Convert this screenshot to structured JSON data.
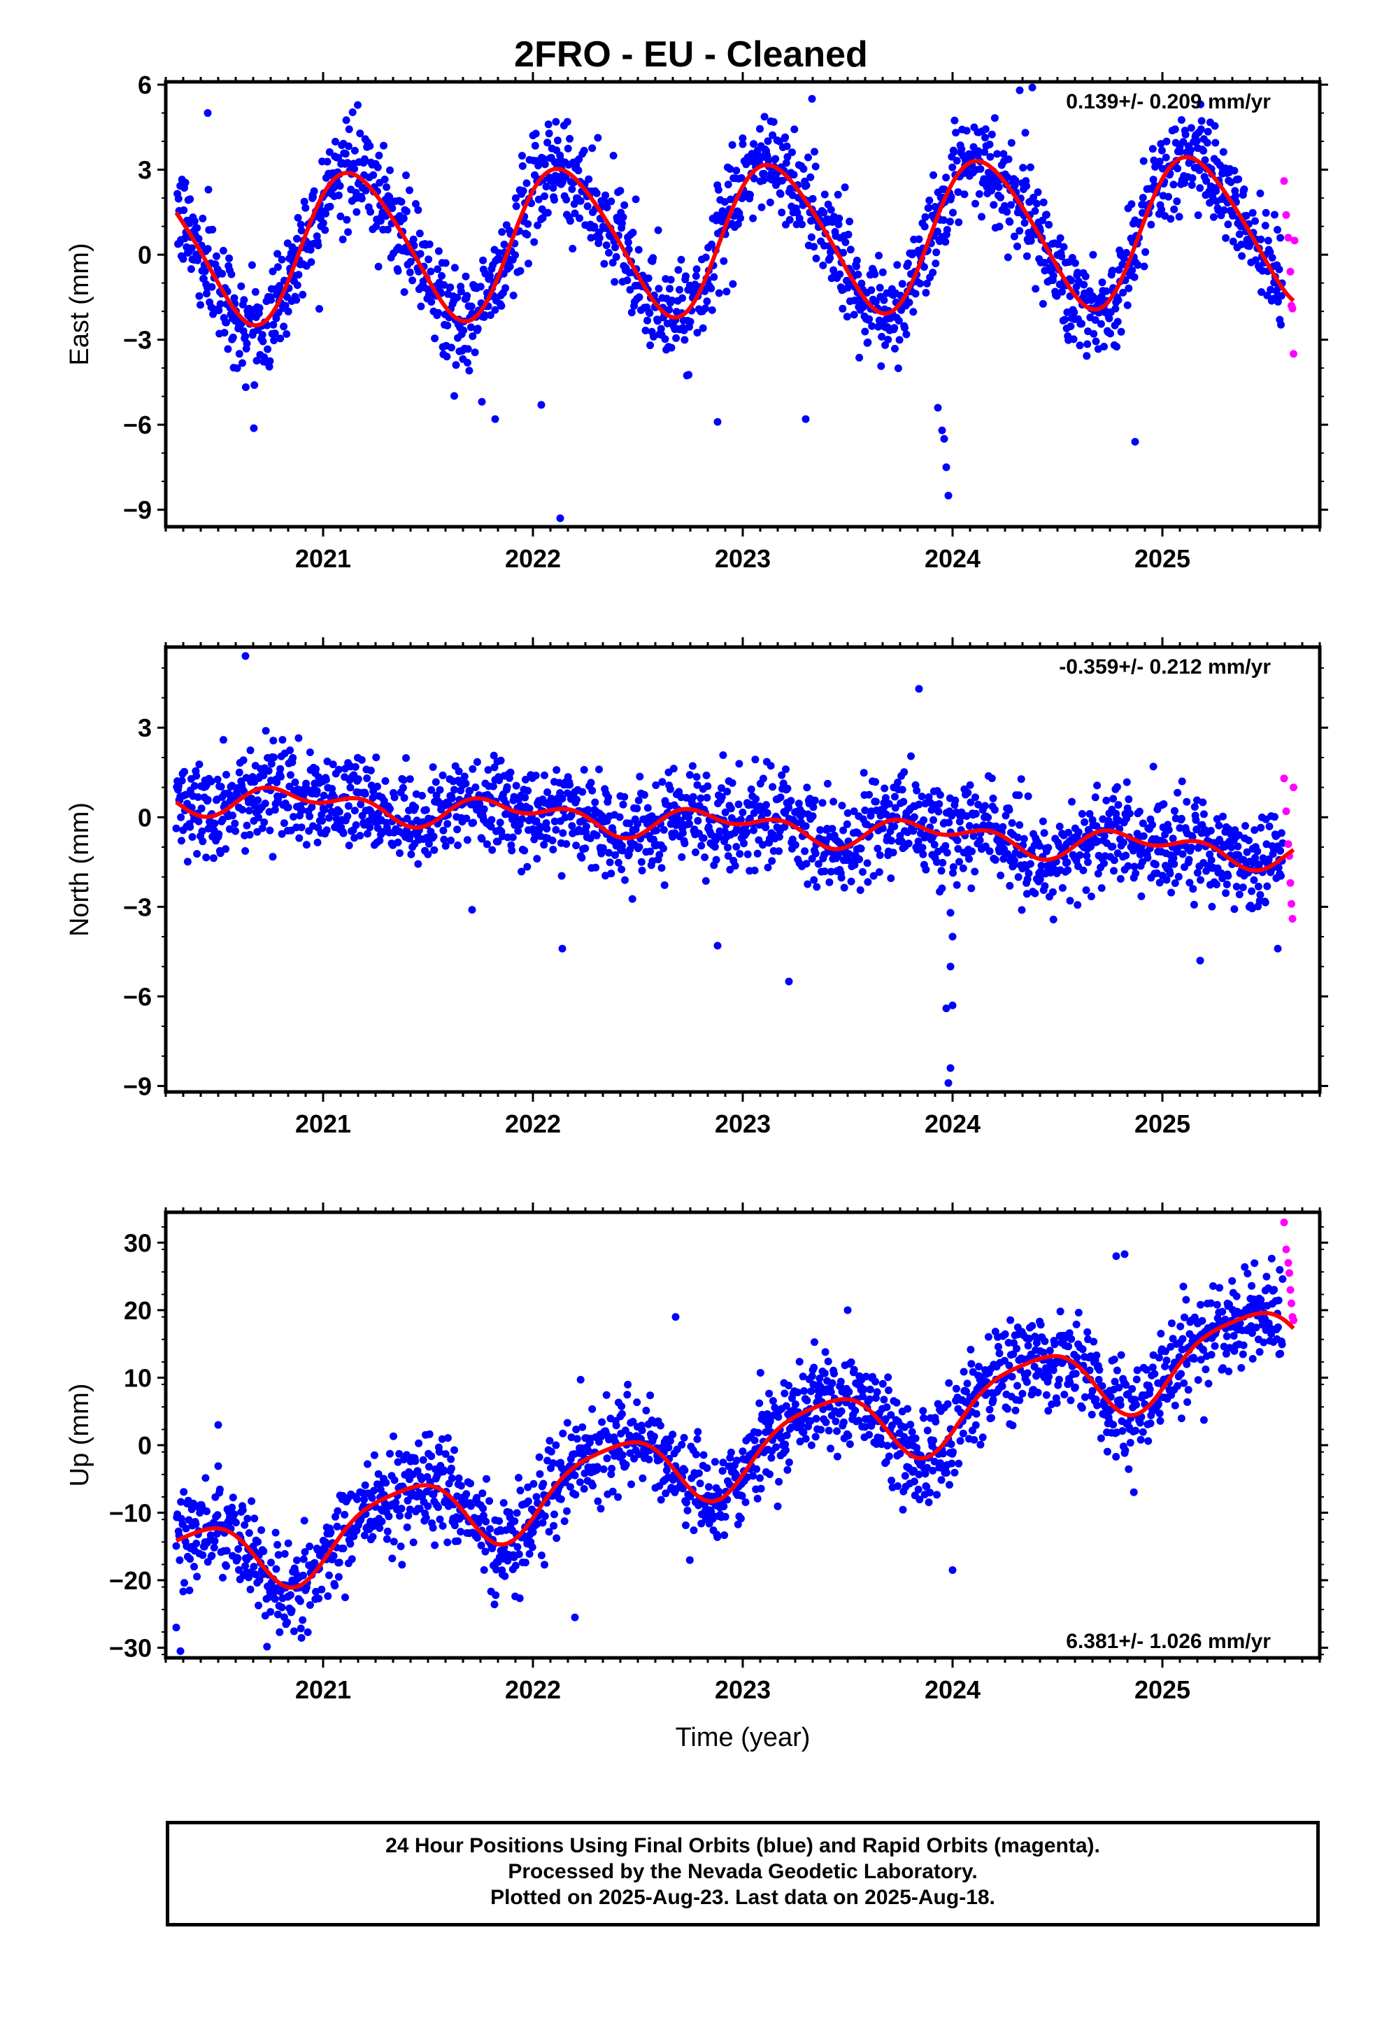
{
  "title": "2FRO  - EU - Cleaned",
  "footer": {
    "line1": "24 Hour Positions Using Final Orbits (blue) and Rapid Orbits (magenta).",
    "line2": "Processed by the Nevada Geodetic Laboratory.",
    "line3": "Plotted on 2025-Aug-23. Last data on 2025-Aug-18."
  },
  "colors": {
    "final": "#0000ff",
    "rapid": "#ff00ff",
    "model": "#ff0000",
    "frame": "#000000"
  },
  "chart_data": [
    {
      "type": "scatter",
      "name": "east",
      "ylabel": "East (mm)",
      "xlabel": "",
      "rate_label": "0.139+/- 0.209 mm/yr",
      "rate_position": "top-right",
      "xlim": [
        2020.25,
        2025.75
      ],
      "ylim": [
        -9.6,
        6.1
      ],
      "yticks": [
        -9,
        -6,
        -3,
        0,
        3,
        6
      ],
      "ytick_labels": [
        "−9",
        "−6",
        "−3",
        "0",
        "3",
        "6"
      ],
      "xticks": [
        2021,
        2022,
        2023,
        2024,
        2025
      ],
      "xtick_labels": [
        "2021",
        "2022",
        "2023",
        "2024",
        "2025"
      ],
      "model": {
        "offset": 0.2,
        "trend": 0.139,
        "amp1": 2.6,
        "phase1": 0.15,
        "amp2": 0.3,
        "phase2": 0.0
      },
      "scatter_sd": 0.9,
      "rapid": [
        [
          2025.58,
          2.6
        ],
        [
          2025.59,
          1.4
        ],
        [
          2025.6,
          0.6
        ],
        [
          2025.61,
          -0.6
        ],
        [
          2025.615,
          -1.8
        ],
        [
          2025.62,
          -1.9
        ],
        [
          2025.625,
          -3.5
        ],
        [
          2025.63,
          0.5
        ]
      ],
      "outliers": [
        [
          2022.13,
          -9.3
        ],
        [
          2023.98,
          -8.5
        ],
        [
          2023.97,
          -7.5
        ],
        [
          2023.96,
          -6.5
        ],
        [
          2023.95,
          -6.2
        ],
        [
          2023.93,
          -5.4
        ],
        [
          2024.87,
          -6.6
        ],
        [
          2021.82,
          -5.8
        ],
        [
          2022.88,
          -5.9
        ],
        [
          2023.3,
          -5.8
        ],
        [
          2022.04,
          -5.3
        ],
        [
          2024.38,
          5.9
        ],
        [
          2024.32,
          5.8
        ],
        [
          2023.33,
          5.5
        ],
        [
          2020.45,
          5.0
        ],
        [
          2023.0,
          3.9
        ],
        [
          2024.12,
          3.5
        ],
        [
          2020.95,
          2.1
        ]
      ]
    },
    {
      "type": "scatter",
      "name": "north",
      "ylabel": "North (mm)",
      "xlabel": "",
      "rate_label": "-0.359+/- 0.212 mm/yr",
      "rate_position": "top-right",
      "xlim": [
        2020.25,
        2025.75
      ],
      "ylim": [
        -9.2,
        5.7
      ],
      "yticks": [
        -9,
        -6,
        -3,
        0,
        3
      ],
      "ytick_labels": [
        "−9",
        "−6",
        "−3",
        "0",
        "3"
      ],
      "xticks": [
        2021,
        2022,
        2023,
        2024,
        2025
      ],
      "xtick_labels": [
        "2021",
        "2022",
        "2023",
        "2024",
        "2025"
      ],
      "model": {
        "offset": 0.7,
        "trend": -0.359,
        "amp1": 0.35,
        "phase1": 0.9,
        "amp2": 0.3,
        "phase2": 0.2
      },
      "scatter_sd": 0.8,
      "rapid": [
        [
          2025.58,
          1.3
        ],
        [
          2025.59,
          0.2
        ],
        [
          2025.6,
          -0.9
        ],
        [
          2025.605,
          -1.3
        ],
        [
          2025.61,
          -2.2
        ],
        [
          2025.615,
          -2.9
        ],
        [
          2025.62,
          -3.4
        ],
        [
          2025.625,
          1.0
        ]
      ],
      "outliers": [
        [
          2020.63,
          5.4
        ],
        [
          2022.14,
          -4.4
        ],
        [
          2022.88,
          -4.3
        ],
        [
          2023.22,
          -5.5
        ],
        [
          2023.98,
          -8.9
        ],
        [
          2023.99,
          -8.4
        ],
        [
          2023.97,
          -6.4
        ],
        [
          2024.0,
          -6.3
        ],
        [
          2023.99,
          -5.0
        ],
        [
          2024.0,
          -4.0
        ],
        [
          2023.99,
          -3.2
        ],
        [
          2025.18,
          -4.8
        ],
        [
          2023.84,
          4.3
        ],
        [
          2021.71,
          -3.1
        ],
        [
          2025.55,
          -4.4
        ]
      ]
    },
    {
      "type": "scatter",
      "name": "up",
      "ylabel": "Up (mm)",
      "xlabel": "Time (year)",
      "rate_label": "6.381+/- 1.026 mm/yr",
      "rate_position": "bottom-right",
      "xlim": [
        2020.25,
        2025.75
      ],
      "ylim": [
        -31.5,
        34.5
      ],
      "yticks": [
        -30,
        -20,
        -10,
        0,
        10,
        20,
        30
      ],
      "ytick_labels": [
        "−30",
        "−20",
        "−10",
        "0",
        "10",
        "20",
        "30"
      ],
      "xticks": [
        2021,
        2022,
        2023,
        2024,
        2025
      ],
      "xtick_labels": [
        "2021",
        "2022",
        "2023",
        "2024",
        "2025"
      ],
      "model": {
        "offset": -18.0,
        "trend": 6.381,
        "amp1": 5.5,
        "phase1": 0.38,
        "amp2": 1.2,
        "phase2": 0.1
      },
      "scatter_sd": 3.6,
      "rapid": [
        [
          2025.58,
          33.0
        ],
        [
          2025.59,
          29.0
        ],
        [
          2025.6,
          27.0
        ],
        [
          2025.605,
          25.5
        ],
        [
          2025.61,
          23.0
        ],
        [
          2025.615,
          21.0
        ],
        [
          2025.62,
          19.0
        ],
        [
          2025.625,
          18.5
        ]
      ],
      "outliers": [
        [
          2020.32,
          -30.5
        ],
        [
          2020.3,
          -27.0
        ],
        [
          2022.2,
          -25.5
        ],
        [
          2024.0,
          -18.5
        ],
        [
          2024.78,
          28.0
        ],
        [
          2024.82,
          28.3
        ],
        [
          2025.1,
          23.5
        ],
        [
          2023.5,
          20.0
        ],
        [
          2022.68,
          19.0
        ],
        [
          2020.5,
          3.0
        ]
      ]
    }
  ]
}
